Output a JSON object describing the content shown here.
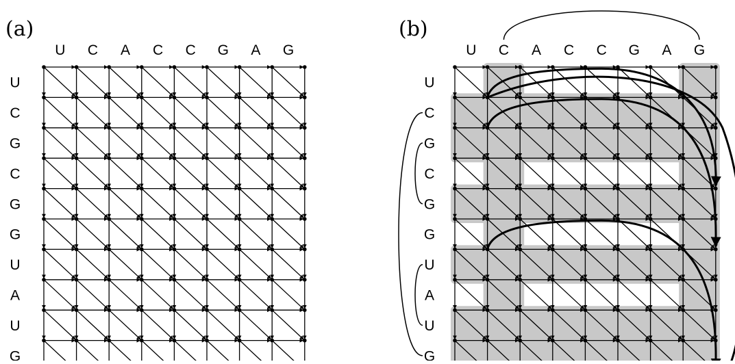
{
  "panels": [
    {
      "id": "a",
      "label": "(a)",
      "top_sequence": [
        "U",
        "C",
        "A",
        "C",
        "C",
        "G",
        "A",
        "G"
      ],
      "left_sequence": [
        "U",
        "C",
        "G",
        "C",
        "G",
        "G",
        "U",
        "A",
        "U",
        "G"
      ]
    },
    {
      "id": "b",
      "label": "(b)",
      "top_sequence": [
        "U",
        "C",
        "A",
        "C",
        "C",
        "G",
        "A",
        "G"
      ],
      "left_sequence": [
        "U",
        "C",
        "G",
        "C",
        "G",
        "G",
        "U",
        "A",
        "U",
        "G"
      ],
      "shaded_rows": [
        1,
        2,
        4,
        6,
        8,
        9
      ],
      "shaded_cols": [
        1,
        7
      ],
      "top_arc": {
        "from_col": 1,
        "to_col": 7
      },
      "left_arcs": [
        {
          "from_row": 1,
          "to_row": 9
        },
        {
          "from_row": 2,
          "to_row": 4
        },
        {
          "from_row": 6,
          "to_row": 8
        }
      ],
      "highlight_paths": [
        {
          "start": [
            1,
            1
          ],
          "end": [
            4,
            8
          ]
        },
        {
          "start": [
            2,
            1
          ],
          "end": [
            6,
            8
          ]
        },
        {
          "start": [
            6,
            1
          ],
          "end": [
            10,
            8
          ]
        }
      ]
    }
  ],
  "colors": {
    "ink": "#000000",
    "shade": "#c8c8c8",
    "background": "#ffffff"
  }
}
